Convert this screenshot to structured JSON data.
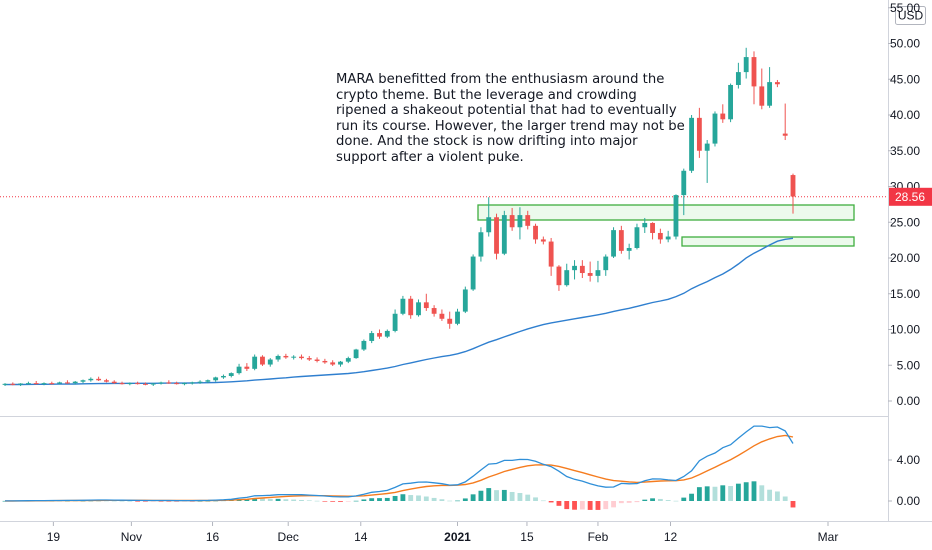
{
  "currency_label": "USD",
  "annotation": "MARA benefitted from the enthusiasm around the crypto theme. But the leverage and crowding ripened a shakeout potential that had to eventually run its course. However, the larger trend may not be done. And the stock is now drifting into major support after a violent puke.",
  "last_price_label": "28.56",
  "colors": {
    "up": "#26a69a",
    "down": "#ef5350",
    "ma_line": "#2f7fcf",
    "macd_line": "#2f8fd8",
    "signal_line": "#f57c1f",
    "zone_fill": "#c8f0c8",
    "zone_stroke": "#3fae3f",
    "price_tag": "#f23645"
  },
  "chart_data": [
    {
      "type": "candlestick",
      "title": "",
      "y_tick_labels": [
        "0.00",
        "5.00",
        "10.00",
        "15.00",
        "20.00",
        "25.00",
        "30.00",
        "35.00",
        "40.00",
        "45.00",
        "50.00",
        "55.00"
      ],
      "ylim": [
        -1.5,
        56
      ],
      "x_tick_labels": [
        "19",
        "Nov",
        "16",
        "Dec",
        "14",
        "2021",
        "15",
        "Feb",
        "12",
        "Mar"
      ],
      "last_price": 28.56,
      "candles": [
        {
          "o": 2.3,
          "h": 2.5,
          "l": 2.1,
          "c": 2.4
        },
        {
          "o": 2.4,
          "h": 2.6,
          "l": 2.2,
          "c": 2.3
        },
        {
          "o": 2.3,
          "h": 2.5,
          "l": 2.1,
          "c": 2.45
        },
        {
          "o": 2.45,
          "h": 2.7,
          "l": 2.3,
          "c": 2.5
        },
        {
          "o": 2.5,
          "h": 2.8,
          "l": 2.3,
          "c": 2.4
        },
        {
          "o": 2.4,
          "h": 2.6,
          "l": 2.2,
          "c": 2.5
        },
        {
          "o": 2.5,
          "h": 2.7,
          "l": 2.3,
          "c": 2.45
        },
        {
          "o": 2.45,
          "h": 2.7,
          "l": 2.3,
          "c": 2.6
        },
        {
          "o": 2.6,
          "h": 2.9,
          "l": 2.4,
          "c": 2.5
        },
        {
          "o": 2.5,
          "h": 2.8,
          "l": 2.3,
          "c": 2.7
        },
        {
          "o": 2.7,
          "h": 3.0,
          "l": 2.5,
          "c": 2.9
        },
        {
          "o": 2.9,
          "h": 3.3,
          "l": 2.7,
          "c": 3.1
        },
        {
          "o": 3.1,
          "h": 3.4,
          "l": 2.8,
          "c": 2.9
        },
        {
          "o": 2.9,
          "h": 3.1,
          "l": 2.6,
          "c": 2.7
        },
        {
          "o": 2.7,
          "h": 2.9,
          "l": 2.4,
          "c": 2.5
        },
        {
          "o": 2.5,
          "h": 2.7,
          "l": 2.3,
          "c": 2.4
        },
        {
          "o": 2.4,
          "h": 2.6,
          "l": 2.2,
          "c": 2.5
        },
        {
          "o": 2.5,
          "h": 2.7,
          "l": 2.3,
          "c": 2.4
        },
        {
          "o": 2.4,
          "h": 2.6,
          "l": 2.2,
          "c": 2.3
        },
        {
          "o": 2.3,
          "h": 2.5,
          "l": 2.1,
          "c": 2.45
        },
        {
          "o": 2.45,
          "h": 2.7,
          "l": 2.3,
          "c": 2.6
        },
        {
          "o": 2.6,
          "h": 2.9,
          "l": 2.4,
          "c": 2.5
        },
        {
          "o": 2.5,
          "h": 2.7,
          "l": 2.3,
          "c": 2.4
        },
        {
          "o": 2.4,
          "h": 2.6,
          "l": 2.2,
          "c": 2.5
        },
        {
          "o": 2.5,
          "h": 2.7,
          "l": 2.3,
          "c": 2.6
        },
        {
          "o": 2.6,
          "h": 2.9,
          "l": 2.4,
          "c": 2.7
        },
        {
          "o": 2.7,
          "h": 3.0,
          "l": 2.5,
          "c": 2.9
        },
        {
          "o": 2.9,
          "h": 3.4,
          "l": 2.7,
          "c": 3.3
        },
        {
          "o": 3.3,
          "h": 3.7,
          "l": 3.1,
          "c": 3.5
        },
        {
          "o": 3.5,
          "h": 4.0,
          "l": 3.3,
          "c": 3.9
        },
        {
          "o": 3.9,
          "h": 5.2,
          "l": 3.7,
          "c": 4.8
        },
        {
          "o": 4.8,
          "h": 5.3,
          "l": 4.2,
          "c": 4.5
        },
        {
          "o": 4.5,
          "h": 6.5,
          "l": 4.3,
          "c": 6.2
        },
        {
          "o": 6.2,
          "h": 6.4,
          "l": 4.9,
          "c": 5.1
        },
        {
          "o": 5.1,
          "h": 6.0,
          "l": 4.8,
          "c": 5.8
        },
        {
          "o": 5.8,
          "h": 6.5,
          "l": 5.5,
          "c": 6.3
        },
        {
          "o": 6.3,
          "h": 6.6,
          "l": 5.9,
          "c": 6.1
        },
        {
          "o": 6.1,
          "h": 6.4,
          "l": 5.8,
          "c": 6.2
        },
        {
          "o": 6.2,
          "h": 6.5,
          "l": 5.8,
          "c": 6.0
        },
        {
          "o": 6.0,
          "h": 6.3,
          "l": 5.6,
          "c": 5.8
        },
        {
          "o": 5.8,
          "h": 6.1,
          "l": 5.4,
          "c": 5.6
        },
        {
          "o": 5.6,
          "h": 5.9,
          "l": 5.2,
          "c": 5.4
        },
        {
          "o": 5.4,
          "h": 5.7,
          "l": 4.9,
          "c": 5.1
        },
        {
          "o": 5.1,
          "h": 5.6,
          "l": 4.8,
          "c": 5.5
        },
        {
          "o": 5.5,
          "h": 6.2,
          "l": 5.3,
          "c": 6.0
        },
        {
          "o": 6.0,
          "h": 7.3,
          "l": 5.9,
          "c": 7.2
        },
        {
          "o": 7.2,
          "h": 8.6,
          "l": 7.0,
          "c": 8.4
        },
        {
          "o": 8.4,
          "h": 9.8,
          "l": 8.1,
          "c": 9.5
        },
        {
          "o": 9.5,
          "h": 10.0,
          "l": 8.7,
          "c": 9.0
        },
        {
          "o": 9.0,
          "h": 10.0,
          "l": 8.8,
          "c": 9.8
        },
        {
          "o": 9.8,
          "h": 12.8,
          "l": 9.6,
          "c": 12.2
        },
        {
          "o": 12.2,
          "h": 14.7,
          "l": 12.0,
          "c": 14.3
        },
        {
          "o": 14.3,
          "h": 14.7,
          "l": 11.5,
          "c": 12.0
        },
        {
          "o": 12.0,
          "h": 14.2,
          "l": 11.8,
          "c": 13.8
        },
        {
          "o": 13.8,
          "h": 15.0,
          "l": 12.6,
          "c": 13.0
        },
        {
          "o": 13.0,
          "h": 13.4,
          "l": 11.8,
          "c": 12.2
        },
        {
          "o": 12.2,
          "h": 12.8,
          "l": 11.2,
          "c": 11.5
        },
        {
          "o": 11.5,
          "h": 12.5,
          "l": 10.1,
          "c": 10.8
        },
        {
          "o": 10.8,
          "h": 12.9,
          "l": 10.6,
          "c": 12.5
        },
        {
          "o": 12.5,
          "h": 16.0,
          "l": 12.3,
          "c": 15.6
        },
        {
          "o": 15.6,
          "h": 20.5,
          "l": 15.4,
          "c": 20.2
        },
        {
          "o": 20.2,
          "h": 24.3,
          "l": 19.5,
          "c": 23.6
        },
        {
          "o": 23.6,
          "h": 28.5,
          "l": 23.0,
          "c": 25.7
        },
        {
          "o": 25.7,
          "h": 26.2,
          "l": 19.8,
          "c": 20.6
        },
        {
          "o": 20.6,
          "h": 26.6,
          "l": 20.4,
          "c": 26.0
        },
        {
          "o": 26.0,
          "h": 27.0,
          "l": 23.8,
          "c": 24.3
        },
        {
          "o": 24.3,
          "h": 27.1,
          "l": 22.6,
          "c": 26.0
        },
        {
          "o": 26.0,
          "h": 26.6,
          "l": 24.0,
          "c": 24.5
        },
        {
          "o": 24.5,
          "h": 24.8,
          "l": 22.0,
          "c": 22.6
        },
        {
          "o": 22.6,
          "h": 23.0,
          "l": 21.9,
          "c": 22.3
        },
        {
          "o": 22.3,
          "h": 22.8,
          "l": 17.5,
          "c": 18.8
        },
        {
          "o": 18.8,
          "h": 19.0,
          "l": 15.4,
          "c": 16.2
        },
        {
          "o": 16.2,
          "h": 19.2,
          "l": 16.0,
          "c": 18.3
        },
        {
          "o": 18.3,
          "h": 19.7,
          "l": 17.0,
          "c": 18.9
        },
        {
          "o": 18.9,
          "h": 19.7,
          "l": 17.2,
          "c": 17.9
        },
        {
          "o": 17.9,
          "h": 19.5,
          "l": 16.7,
          "c": 17.5
        },
        {
          "o": 17.5,
          "h": 19.6,
          "l": 16.6,
          "c": 18.3
        },
        {
          "o": 18.3,
          "h": 20.5,
          "l": 17.5,
          "c": 20.2
        },
        {
          "o": 20.2,
          "h": 24.3,
          "l": 20.0,
          "c": 23.9
        },
        {
          "o": 23.9,
          "h": 24.5,
          "l": 20.6,
          "c": 21.0
        },
        {
          "o": 21.0,
          "h": 22.0,
          "l": 19.8,
          "c": 21.4
        },
        {
          "o": 21.4,
          "h": 24.8,
          "l": 21.2,
          "c": 24.3
        },
        {
          "o": 24.3,
          "h": 25.6,
          "l": 23.5,
          "c": 24.9
        },
        {
          "o": 24.9,
          "h": 25.0,
          "l": 22.6,
          "c": 23.5
        },
        {
          "o": 23.5,
          "h": 24.1,
          "l": 22.0,
          "c": 22.6
        },
        {
          "o": 22.6,
          "h": 23.8,
          "l": 22.2,
          "c": 23.0
        },
        {
          "o": 23.0,
          "h": 28.9,
          "l": 22.6,
          "c": 28.8
        },
        {
          "o": 28.8,
          "h": 32.5,
          "l": 26.0,
          "c": 32.2
        },
        {
          "o": 32.2,
          "h": 40.0,
          "l": 31.9,
          "c": 39.6
        },
        {
          "o": 39.6,
          "h": 41.0,
          "l": 34.0,
          "c": 35.0
        },
        {
          "o": 35.0,
          "h": 36.5,
          "l": 30.5,
          "c": 36.0
        },
        {
          "o": 36.0,
          "h": 40.5,
          "l": 35.6,
          "c": 40.2
        },
        {
          "o": 40.2,
          "h": 41.5,
          "l": 38.9,
          "c": 39.4
        },
        {
          "o": 39.4,
          "h": 44.4,
          "l": 39.0,
          "c": 44.2
        },
        {
          "o": 44.2,
          "h": 47.3,
          "l": 43.7,
          "c": 46.0
        },
        {
          "o": 46.0,
          "h": 49.4,
          "l": 45.1,
          "c": 48.1
        },
        {
          "o": 48.1,
          "h": 48.9,
          "l": 41.5,
          "c": 44.0
        },
        {
          "o": 44.0,
          "h": 46.5,
          "l": 40.8,
          "c": 41.3
        },
        {
          "o": 41.3,
          "h": 46.7,
          "l": 41.0,
          "c": 44.6
        },
        {
          "o": 44.6,
          "h": 44.9,
          "l": 43.9,
          "c": 44.3
        },
        {
          "o": 37.4,
          "h": 41.6,
          "l": 36.5,
          "c": 37.1
        },
        {
          "o": 31.6,
          "h": 31.8,
          "l": 26.2,
          "c": 28.6
        }
      ],
      "moving_average": [
        2.3,
        2.31,
        2.31,
        2.32,
        2.33,
        2.34,
        2.35,
        2.36,
        2.37,
        2.38,
        2.4,
        2.42,
        2.44,
        2.45,
        2.46,
        2.46,
        2.47,
        2.47,
        2.47,
        2.48,
        2.49,
        2.5,
        2.5,
        2.51,
        2.52,
        2.54,
        2.56,
        2.59,
        2.63,
        2.68,
        2.75,
        2.82,
        2.92,
        3.0,
        3.08,
        3.17,
        3.25,
        3.34,
        3.42,
        3.5,
        3.57,
        3.64,
        3.7,
        3.77,
        3.85,
        3.96,
        4.1,
        4.27,
        4.43,
        4.6,
        4.83,
        5.1,
        5.33,
        5.57,
        5.8,
        6.02,
        6.21,
        6.38,
        6.6,
        6.91,
        7.31,
        7.78,
        8.22,
        8.57,
        8.97,
        9.34,
        9.72,
        10.08,
        10.39,
        10.68,
        10.93,
        11.1,
        11.3,
        11.5,
        11.68,
        11.86,
        12.05,
        12.27,
        12.53,
        12.75,
        12.97,
        13.23,
        13.51,
        13.77,
        13.99,
        14.22,
        14.6,
        15.06,
        15.71,
        16.22,
        16.7,
        17.26,
        17.76,
        18.41,
        19.16,
        20.01,
        20.67,
        21.23,
        21.82,
        22.35,
        22.61,
        22.75
      ]
    },
    {
      "type": "macd",
      "y_tick_labels": [
        "4.00",
        "0.00"
      ],
      "ylim": [
        -1.6,
        7.8
      ],
      "macd": [
        0.01,
        0.01,
        0.02,
        0.03,
        0.04,
        0.04,
        0.05,
        0.05,
        0.06,
        0.06,
        0.07,
        0.09,
        0.1,
        0.1,
        0.09,
        0.08,
        0.07,
        0.06,
        0.05,
        0.05,
        0.05,
        0.05,
        0.04,
        0.04,
        0.04,
        0.05,
        0.06,
        0.09,
        0.12,
        0.17,
        0.28,
        0.35,
        0.51,
        0.53,
        0.56,
        0.61,
        0.62,
        0.62,
        0.61,
        0.58,
        0.54,
        0.49,
        0.43,
        0.4,
        0.41,
        0.5,
        0.66,
        0.85,
        0.93,
        1.03,
        1.33,
        1.67,
        1.74,
        1.84,
        1.85,
        1.78,
        1.69,
        1.55,
        1.58,
        1.86,
        2.42,
        3.02,
        3.6,
        3.66,
        3.96,
        3.96,
        4.06,
        4.05,
        3.87,
        3.58,
        3.36,
        2.91,
        2.39,
        2.12,
        1.94,
        1.69,
        1.47,
        1.35,
        1.37,
        1.72,
        1.68,
        1.7,
        1.97,
        2.16,
        2.15,
        2.06,
        2.0,
        2.39,
        2.95,
        3.93,
        4.37,
        4.68,
        5.2,
        5.49,
        6.14,
        6.74,
        7.31,
        7.31,
        7.16,
        7.22,
        6.84,
        5.61
      ],
      "signal": [
        0.0,
        0.0,
        0.01,
        0.01,
        0.02,
        0.02,
        0.03,
        0.04,
        0.04,
        0.05,
        0.05,
        0.06,
        0.06,
        0.07,
        0.07,
        0.07,
        0.07,
        0.07,
        0.07,
        0.06,
        0.06,
        0.06,
        0.06,
        0.05,
        0.05,
        0.05,
        0.05,
        0.06,
        0.07,
        0.09,
        0.13,
        0.17,
        0.24,
        0.29,
        0.35,
        0.4,
        0.45,
        0.48,
        0.51,
        0.52,
        0.52,
        0.52,
        0.5,
        0.48,
        0.47,
        0.48,
        0.51,
        0.58,
        0.65,
        0.73,
        0.84,
        1.01,
        1.16,
        1.3,
        1.41,
        1.48,
        1.52,
        1.52,
        1.54,
        1.61,
        1.77,
        2.02,
        2.34,
        2.6,
        2.88,
        3.08,
        3.28,
        3.43,
        3.52,
        3.53,
        3.5,
        3.38,
        3.18,
        2.97,
        2.77,
        2.56,
        2.34,
        2.14,
        1.99,
        1.93,
        1.86,
        1.81,
        1.84,
        1.9,
        1.95,
        1.97,
        1.98,
        2.06,
        2.24,
        2.58,
        2.94,
        3.29,
        3.67,
        4.03,
        4.45,
        4.91,
        5.39,
        5.78,
        6.06,
        6.29,
        6.4,
        6.24
      ],
      "histogram": [
        0.01,
        0.01,
        0.01,
        0.02,
        0.02,
        0.02,
        0.02,
        0.01,
        0.02,
        0.01,
        0.02,
        0.03,
        0.04,
        0.03,
        0.02,
        0.01,
        0.0,
        -0.01,
        -0.02,
        -0.01,
        -0.01,
        -0.01,
        -0.02,
        -0.01,
        -0.01,
        0.0,
        0.01,
        0.03,
        0.05,
        0.08,
        0.15,
        0.18,
        0.27,
        0.24,
        0.21,
        0.21,
        0.17,
        0.14,
        0.1,
        0.06,
        0.02,
        -0.03,
        -0.07,
        -0.08,
        -0.06,
        0.02,
        0.15,
        0.27,
        0.28,
        0.3,
        0.49,
        0.66,
        0.58,
        0.54,
        0.44,
        0.3,
        0.17,
        0.03,
        0.04,
        0.25,
        0.65,
        1.0,
        1.26,
        1.06,
        1.08,
        0.88,
        0.78,
        0.62,
        0.35,
        0.05,
        -0.14,
        -0.47,
        -0.79,
        -0.85,
        -0.83,
        -0.87,
        -0.87,
        -0.79,
        -0.62,
        -0.21,
        -0.18,
        -0.11,
        0.13,
        0.26,
        0.2,
        0.09,
        0.02,
        0.33,
        0.71,
        1.35,
        1.43,
        1.39,
        1.53,
        1.46,
        1.69,
        1.83,
        1.92,
        1.53,
        1.1,
        0.93,
        0.44,
        -0.63
      ]
    }
  ]
}
